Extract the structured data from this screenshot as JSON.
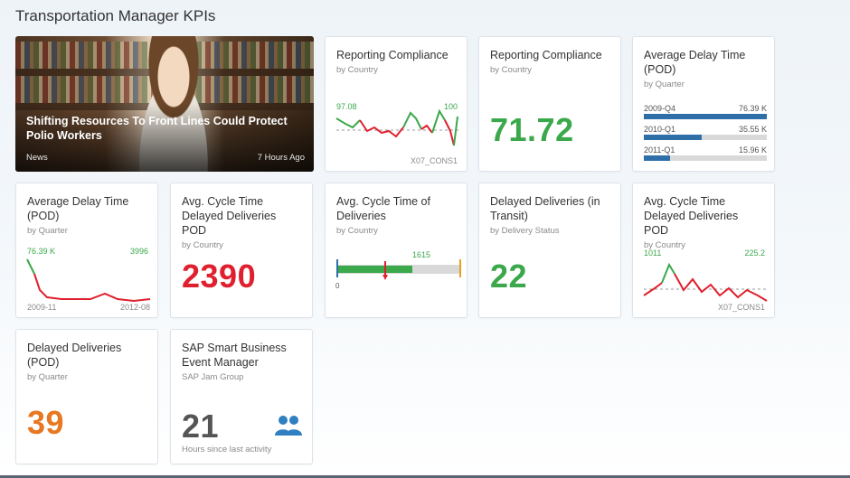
{
  "page": {
    "title": "Transportation Manager KPIs"
  },
  "news_tile": {
    "headline": "Shifting Resources To Front Lines Could Protect Polio Workers",
    "source": "News",
    "age": "7 Hours Ago"
  },
  "tiles": {
    "rc_chart": {
      "title": "Reporting Compliance",
      "subtitle": "by Country",
      "left_label": "97.08",
      "right_label": "100",
      "footer": "X07_CONS1",
      "colors": {
        "green": "#3aa84b",
        "red": "#e0202e"
      }
    },
    "rc_number": {
      "title": "Reporting Compliance",
      "subtitle": "by Country",
      "value": "71.72",
      "color": "#3aa84b"
    },
    "adt_bars": {
      "title": "Average Delay Time (POD)",
      "subtitle": "by Quarter",
      "rows": [
        {
          "label": "2009-Q4",
          "value": "76.39 K",
          "fraction": 1.0
        },
        {
          "label": "2010-Q1",
          "value": "35.55 K",
          "fraction": 0.47
        },
        {
          "label": "2011-Q1",
          "value": "15.96 K",
          "fraction": 0.21
        }
      ],
      "bar_color": "#2e6fa8"
    },
    "adt_line": {
      "title": "Average Delay Time (POD)",
      "subtitle": "by Quarter",
      "left_label": "76.39 K",
      "right_label": "3996",
      "start_label": "2009-11",
      "end_label": "2012-08"
    },
    "act_dd_pod": {
      "title": "Avg. Cycle Time Delayed Deliveries POD",
      "subtitle": "by Country",
      "value": "2390",
      "color": "#e0202e"
    },
    "act_deliveries": {
      "title": "Avg. Cycle Time of Deliveries",
      "subtitle": "by Country",
      "target_label": "1615",
      "zero_label": "0",
      "fill_fraction": 0.55
    },
    "dd_transit": {
      "title": "Delayed Deliveries (in Transit)",
      "subtitle": "by Delivery Status",
      "value": "22",
      "color": "#3aa84b"
    },
    "act_dd_chart": {
      "title": "Avg. Cycle Time Delayed Deliveries POD",
      "subtitle": "by Country",
      "left_label": "1011",
      "right_label": "225.2",
      "footer": "X07_CONS1"
    },
    "dd_pod": {
      "title": "Delayed Deliveries (POD)",
      "subtitle": "by Quarter",
      "value": "39",
      "color": "#e87722"
    },
    "smart_business": {
      "title": "SAP Smart Business Event Manager",
      "subtitle": "SAP Jam Group",
      "value": "21",
      "footer": "Hours since last activity",
      "icon": "people-icon",
      "icon_color": "#2f7fc1"
    }
  }
}
